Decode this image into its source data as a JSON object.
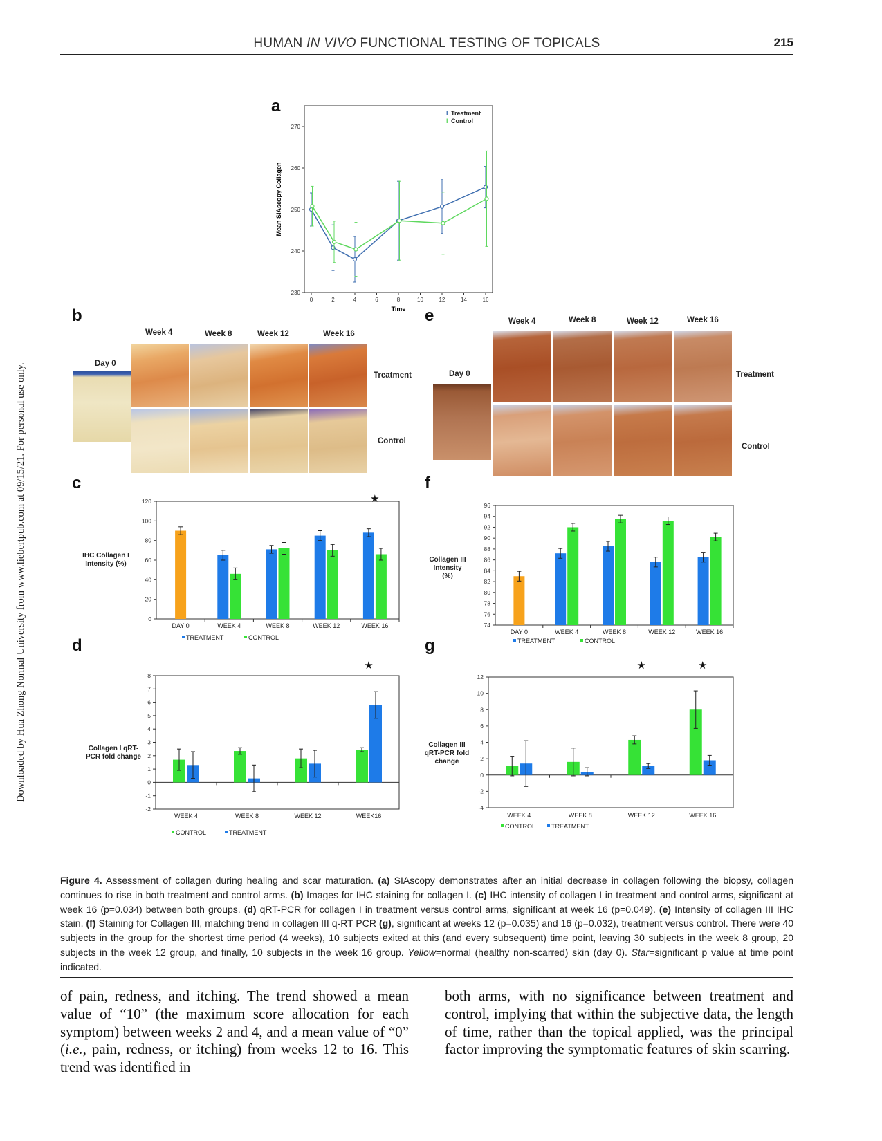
{
  "header": {
    "running_title_pre": "HUMAN ",
    "running_title_italic": "IN VIVO",
    "running_title_post": " FUNCTIONAL TESTING OF TOPICALS",
    "page_number": "215"
  },
  "side_note": "Downloaded by Hua Zhong Normal University from www.liebertpub.com at 09/15/21. For personal use only.",
  "panel_letters": [
    "a",
    "b",
    "c",
    "d",
    "e",
    "f",
    "g"
  ],
  "star_symbol": "★",
  "charts": {
    "colors": {
      "treatment_line": "#3f6fb0",
      "control_line": "#5fd85f",
      "treatment_bar": "#1e7be8",
      "control_bar": "#36e236",
      "day0_bar": "#f7a21b",
      "axis": "#333333"
    }
  },
  "chart_data": [
    {
      "panel": "a",
      "type": "line",
      "ylabel": "Mean SIAscopy Collagen",
      "xlabel": "Time",
      "xlim": [
        0,
        16
      ],
      "ylim": [
        230,
        275
      ],
      "xticks": [
        0,
        2,
        4,
        6,
        8,
        10,
        12,
        14,
        16
      ],
      "yticks": [
        230,
        240,
        250,
        260,
        270
      ],
      "legend": [
        "Treatment",
        "Control"
      ],
      "legend_position": "top-right",
      "series": [
        {
          "name": "Treatment",
          "x": [
            0,
            2,
            4,
            8,
            12,
            16
          ],
          "values": [
            250.0,
            240.8,
            238.0,
            247.3,
            250.7,
            255.4
          ],
          "err": [
            4.0,
            5.5,
            5.5,
            9.5,
            6.5,
            5.0
          ]
        },
        {
          "name": "Control",
          "x": [
            0,
            2,
            4,
            8,
            12,
            16
          ],
          "values": [
            250.8,
            242.2,
            240.4,
            247.3,
            246.7,
            252.6
          ],
          "err": [
            4.8,
            5.0,
            6.5,
            9.5,
            7.5,
            11.5
          ]
        }
      ]
    },
    {
      "panel": "c",
      "type": "bar",
      "ylabel_lines": [
        "IHC Collagen I",
        "Intensity (%)"
      ],
      "categories": [
        "DAY 0",
        "WEEK 4",
        "WEEK 8",
        "WEEK 12",
        "WEEK 16"
      ],
      "ylim": [
        0,
        120
      ],
      "yticks": [
        0,
        20,
        40,
        60,
        80,
        100,
        120
      ],
      "day0": {
        "value": 90,
        "err": 4
      },
      "series": [
        {
          "name": "TREATMENT",
          "values": [
            null,
            65,
            71,
            85,
            88
          ],
          "err": [
            null,
            5,
            4,
            5,
            4
          ]
        },
        {
          "name": "CONTROL",
          "values": [
            null,
            46,
            72,
            70,
            66
          ],
          "err": [
            null,
            6,
            6,
            6,
            6
          ]
        }
      ],
      "legend": [
        "TREATMENT",
        "CONTROL"
      ],
      "star_categories": [
        4
      ]
    },
    {
      "panel": "d",
      "type": "bar",
      "ylabel_lines": [
        "Collagen I qRT-",
        "PCR fold change"
      ],
      "categories": [
        "WEEK 4",
        "WEEK 8",
        "WEEK 12",
        "WEEK16"
      ],
      "ylim": [
        -2,
        8
      ],
      "yticks": [
        -2,
        -1,
        0,
        1,
        2,
        3,
        4,
        5,
        6,
        7,
        8
      ],
      "series": [
        {
          "name": "CONTROL",
          "values": [
            1.7,
            2.35,
            1.8,
            2.45
          ],
          "err": [
            0.8,
            0.25,
            0.7,
            0.15
          ]
        },
        {
          "name": "TREATMENT",
          "values": [
            1.3,
            0.3,
            1.4,
            5.8
          ],
          "err": [
            1.0,
            1.0,
            1.0,
            1.0
          ]
        }
      ],
      "legend": [
        "CONTROL",
        "TREATMENT"
      ],
      "star_categories": [
        3
      ]
    },
    {
      "panel": "f",
      "type": "bar",
      "ylabel_lines": [
        "Collagen III",
        "Intensity",
        "(%)"
      ],
      "categories": [
        "DAY 0",
        "WEEK 4",
        "WEEK 8",
        "WEEK 12",
        "WEEK 16"
      ],
      "ylim": [
        74,
        96
      ],
      "yticks": [
        74,
        76,
        78,
        80,
        82,
        84,
        86,
        88,
        90,
        92,
        94,
        96
      ],
      "day0": {
        "value": 83,
        "err": 0.9
      },
      "series": [
        {
          "name": "TREATMENT",
          "values": [
            null,
            87.2,
            88.5,
            85.6,
            86.5
          ],
          "err": [
            null,
            0.9,
            0.9,
            0.9,
            0.9
          ]
        },
        {
          "name": "CONTROL",
          "values": [
            null,
            92,
            93.5,
            93.2,
            90.2
          ],
          "err": [
            null,
            0.7,
            0.7,
            0.7,
            0.7
          ]
        }
      ],
      "legend": [
        "TREATMENT",
        "CONTROL"
      ],
      "star_categories": []
    },
    {
      "panel": "g",
      "type": "bar",
      "ylabel_lines": [
        "Collagen III",
        "qRT-PCR fold",
        "change"
      ],
      "categories": [
        "WEEK 4",
        "WEEK 8",
        "WEEK 12",
        "WEEK 16"
      ],
      "ylim": [
        -4,
        12
      ],
      "yticks": [
        -4,
        -2,
        0,
        2,
        4,
        6,
        8,
        10,
        12
      ],
      "series": [
        {
          "name": "CONTROL",
          "values": [
            1.1,
            1.6,
            4.3,
            8.0
          ],
          "err": [
            1.2,
            1.7,
            0.5,
            2.3
          ]
        },
        {
          "name": "TREATMENT",
          "values": [
            1.4,
            0.4,
            1.1,
            1.8
          ],
          "err": [
            2.8,
            0.5,
            0.3,
            0.6
          ]
        }
      ],
      "legend": [
        "CONTROL",
        "TREATMENT"
      ],
      "star_categories": [
        2,
        3
      ]
    }
  ],
  "image_panels": {
    "b": {
      "weeks": [
        "Week 4",
        "Week 8",
        "Week 12",
        "Week 16"
      ],
      "day0": "Day 0",
      "rows": [
        "Treatment",
        "Control"
      ]
    },
    "e": {
      "weeks": [
        "Week 4",
        "Week 8",
        "Week 12",
        "Week 16"
      ],
      "day0": "Day 0",
      "rows": [
        "Treatment",
        "Control"
      ]
    }
  },
  "caption": {
    "label": "Figure 4.",
    "text_1": " Assessment of collagen during healing and scar maturation. ",
    "a": "(a)",
    "text_a": " SIAscopy demonstrates after an initial decrease in collagen following the biopsy, collagen continues to rise in both treatment and control arms. ",
    "b": "(b)",
    "text_b": " Images for IHC staining for collagen I. ",
    "c": "(c)",
    "text_c": " IHC intensity of collagen I in treatment and control arms, significant at week 16 (p=0.034) between both groups. ",
    "d": "(d)",
    "text_d": " qRT-PCR for collagen I in treatment versus control arms, significant at week 16 (p=0.049). ",
    "e": "(e)",
    "text_e": " Intensity of collagen III IHC stain. ",
    "f": "(f)",
    "text_f": " Staining for Collagen III, matching trend in collagen III q-RT PCR ",
    "g": "(g)",
    "text_g": ", significant at weeks 12 (p=0.035) and 16 (p=0.032), treatment versus control. There were 40 subjects in the group for the shortest time period (4 weeks), 10 subjects exited at this (and every subsequent) time point, leaving 30 subjects in the week 8 group, 20 subjects in the week 12 group, and finally, 10 subjects in the week 16 group. ",
    "yellow": "Yellow",
    "text_yellow": "=normal (healthy non-scarred) skin (day 0). ",
    "star": "Star",
    "text_star": "=significant p value at time point indicated."
  },
  "body": {
    "left": "of pain, redness, and itching. The trend showed a mean value of “10” (the maximum score allocation for each symptom) between weeks 2 and 4, and a mean value of “0” (",
    "left_italic": "i.e.",
    "left_end": ", pain, redness, or itching) from weeks 12 to 16. This trend was identified in",
    "right": "both arms, with no significance between treatment and control, implying that within the subjective data, the length of time, rather than the topical applied, was the principal factor improving the symptomatic features of skin scarring."
  }
}
